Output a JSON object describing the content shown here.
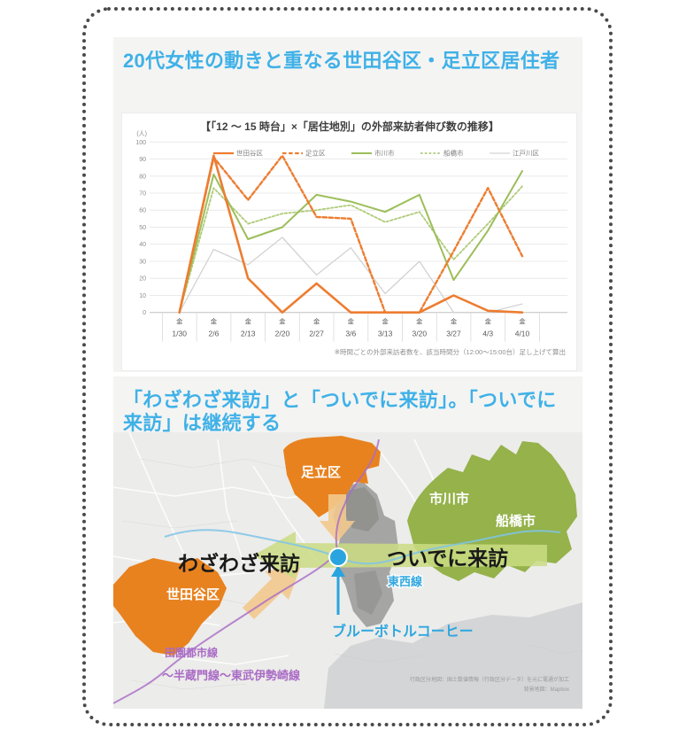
{
  "panel1": {
    "heading": "20代女性の動きと重なる世田谷区・足立区居住者"
  },
  "chart_data": {
    "type": "line",
    "title": "【「12 ～ 15 時台」×「居住地別」の外部来訪者伸び数の推移】",
    "unit_label": "(人)",
    "weekday_label": "金",
    "categories": [
      "1/30",
      "2/6",
      "2/13",
      "2/20",
      "2/27",
      "3/6",
      "3/13",
      "3/20",
      "3/27",
      "4/3",
      "4/10"
    ],
    "ylim": [
      0,
      100
    ],
    "ytick_step": 10,
    "grid": true,
    "legend_position": "top",
    "series": [
      {
        "name": "世田谷区",
        "color": "#ED7D31",
        "style": "solid",
        "width": 2.6,
        "values": [
          0,
          92,
          20,
          0,
          17,
          0,
          0,
          0,
          10,
          1,
          0
        ]
      },
      {
        "name": "足立区",
        "color": "#ED7D31",
        "style": "dashed",
        "width": 2.4,
        "values": [
          0,
          91,
          66,
          92,
          56,
          55,
          0,
          0,
          36,
          73,
          33
        ]
      },
      {
        "name": "市川市",
        "color": "#9CBE5A",
        "style": "solid",
        "width": 2.0,
        "values": [
          0,
          81,
          43,
          50,
          69,
          65,
          59,
          69,
          19,
          48,
          83
        ]
      },
      {
        "name": "船橋市",
        "color": "#AFCB79",
        "style": "dotted",
        "width": 1.8,
        "values": [
          0,
          73,
          52,
          58,
          60,
          63,
          53,
          59,
          31,
          52,
          74
        ]
      },
      {
        "name": "江戸川区",
        "color": "#D2D2D2",
        "style": "solid",
        "width": 1.3,
        "values": [
          0,
          37,
          28,
          44,
          22,
          38,
          11,
          30,
          0,
          0,
          5
        ]
      }
    ],
    "footnote": "※時間ごとの外部来訪者数を、該当時間分（12:00～15:00台）足し上げて算出"
  },
  "panel2": {
    "heading": "「わざわざ来訪」と「ついでに来訪」。「ついでに来訪」は継続する",
    "map": {
      "region_labels": {
        "adachi": "足立区",
        "ichikawa": "市川市",
        "funabashi": "船橋市",
        "setagaya": "世田谷区"
      },
      "annotations": {
        "wazawaza": "わざわざ来訪",
        "tsuideni": "ついでに来訪",
        "blue_bottle": "ブルーボトルコーヒー",
        "tozai_line": "東西線",
        "denentoshi_line": "田園都市線",
        "hanzomon_line": "〜半蔵門線〜東武伊勢崎線"
      },
      "attribution": {
        "line1": "行政区分地図：国土数値情報（行政区分データ）を元に電通が加工",
        "line2": "背景地図：Mapbox"
      },
      "colors": {
        "heading_blue": "#3FB1E7",
        "region_orange": "#E8821F",
        "region_green": "#95B24B",
        "arrow_tan": "#F3C98E",
        "arrow_green": "#CADC82",
        "marker_blue": "#29A4DE",
        "rail_purple": "#A96BC5",
        "center_gray": "#A5A5A3"
      }
    }
  }
}
